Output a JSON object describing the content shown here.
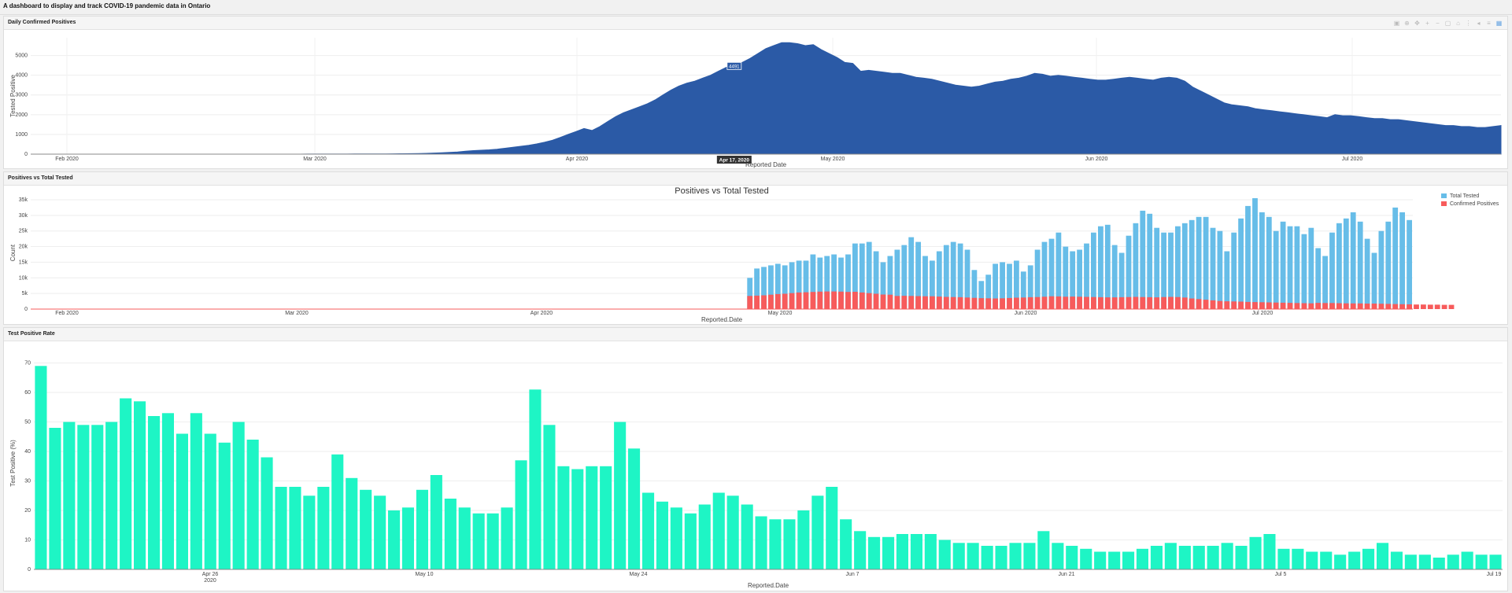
{
  "app": {
    "title": "A dashboard to display and track COVID-19 pandemic data in Ontario"
  },
  "panels": [
    {
      "title": "Daily Confirmed Positives"
    },
    {
      "title": "Positives vs Total Tested"
    },
    {
      "title": "Test Positive Rate"
    }
  ],
  "modebar": [
    "camera-icon",
    "zoom-icon",
    "pan-icon",
    "zoom-in-icon",
    "zoom-out-icon",
    "autoscale-icon",
    "reset-icon",
    "spike-icon",
    "hover-closest-icon",
    "hover-compare-icon",
    "plotly-logo-icon"
  ],
  "chart_data": [
    {
      "type": "area",
      "title": "",
      "xlabel": "Reported Date",
      "ylabel": "Tested Positive",
      "x_ticks": [
        "Feb 2020",
        "Mar 2020",
        "Apr 2020",
        "May 2020",
        "Jun 2020",
        "Jul 2020"
      ],
      "y_ticks": [
        0,
        1000,
        2000,
        3000,
        4000,
        5000
      ],
      "ylim": [
        0,
        5900
      ],
      "color": "#2b5aa6",
      "hover": {
        "value_label": "4491",
        "date_label": "Apr 17, 2020"
      },
      "x_start": "2020-01-27",
      "x_end": "2020-07-21",
      "values": [
        0,
        0,
        0,
        0,
        0,
        0,
        0,
        0,
        0,
        0,
        0,
        0,
        0,
        0,
        0,
        0,
        0,
        0,
        0,
        0,
        0,
        0,
        0,
        0,
        0,
        0,
        0,
        0,
        0,
        0,
        0,
        0,
        1,
        1,
        1,
        2,
        2,
        3,
        3,
        4,
        5,
        6,
        7,
        8,
        10,
        12,
        15,
        20,
        25,
        30,
        40,
        55,
        70,
        90,
        110,
        150,
        180,
        200,
        220,
        250,
        300,
        350,
        400,
        450,
        520,
        600,
        700,
        850,
        1000,
        1150,
        1300,
        1200,
        1400,
        1650,
        1900,
        2100,
        2250,
        2400,
        2550,
        2750,
        3000,
        3250,
        3450,
        3600,
        3700,
        3850,
        4000,
        4200,
        4400,
        4491,
        4650,
        4850,
        5100,
        5350,
        5500,
        5650,
        5650,
        5600,
        5500,
        5550,
        5300,
        5100,
        4900,
        4650,
        4600,
        4200,
        4250,
        4200,
        4150,
        4100,
        4100,
        4000,
        3900,
        3850,
        3800,
        3700,
        3600,
        3500,
        3450,
        3400,
        3450,
        3550,
        3650,
        3700,
        3800,
        3850,
        3950,
        4100,
        4050,
        3950,
        4000,
        3950,
        3900,
        3850,
        3800,
        3750,
        3750,
        3800,
        3850,
        3900,
        3850,
        3800,
        3750,
        3850,
        3900,
        3850,
        3700,
        3400,
        3200,
        3000,
        2800,
        2600,
        2500,
        2450,
        2400,
        2300,
        2250,
        2200,
        2150,
        2100,
        2050,
        2000,
        1950,
        1900,
        1850,
        2000,
        1950,
        1950,
        1900,
        1850,
        1800,
        1800,
        1750,
        1750,
        1700,
        1650,
        1600,
        1550,
        1500,
        1450,
        1450,
        1400,
        1400,
        1350,
        1350,
        1400,
        1450
      ],
      "series": [
        {
          "values_ref": "values"
        }
      ]
    },
    {
      "type": "bar",
      "title": "Positives vs Total Tested",
      "xlabel": "Reported.Date",
      "ylabel": "Count",
      "x_ticks": [
        "Feb 2020",
        "Mar 2020",
        "Apr 2020",
        "May 2020",
        "Jun 2020",
        "Jul 2020"
      ],
      "y_ticks": [
        "0",
        "5k",
        "10k",
        "15k",
        "20k",
        "25k",
        "30k",
        "35k"
      ],
      "ylim": [
        0,
        36000
      ],
      "legend": "top-right",
      "series": [
        {
          "name": "Total Tested",
          "color": "#67bde8",
          "values": [
            0,
            0,
            0,
            0,
            0,
            0,
            0,
            0,
            0,
            0,
            0,
            0,
            0,
            0,
            0,
            0,
            0,
            0,
            0,
            0,
            0,
            0,
            0,
            0,
            0,
            0,
            0,
            0,
            0,
            0,
            0,
            0,
            0,
            0,
            0,
            0,
            0,
            0,
            0,
            0,
            0,
            0,
            0,
            0,
            0,
            0,
            0,
            0,
            0,
            0,
            0,
            0,
            0,
            0,
            0,
            0,
            0,
            0,
            0,
            0,
            0,
            0,
            0,
            0,
            0,
            0,
            0,
            0,
            0,
            0,
            0,
            0,
            0,
            0,
            0,
            0,
            0,
            0,
            0,
            0,
            0,
            0,
            0,
            0,
            0,
            0,
            0,
            0,
            0,
            0,
            0,
            0,
            0,
            0,
            0,
            0,
            0,
            0,
            0,
            0,
            0,
            0,
            10000,
            13000,
            13500,
            14000,
            14500,
            14000,
            15000,
            15500,
            15500,
            17500,
            16500,
            17000,
            17500,
            16500,
            17500,
            21000,
            21000,
            21500,
            18500,
            15000,
            17000,
            19000,
            20500,
            23000,
            21500,
            17000,
            15500,
            18500,
            20500,
            21500,
            21000,
            19000,
            12500,
            9000,
            11000,
            14500,
            15000,
            14500,
            15500,
            12000,
            14000,
            19000,
            21500,
            22500,
            24500,
            20000,
            18500,
            19000,
            21000,
            24500,
            26500,
            27000,
            20500,
            18000,
            23500,
            27500,
            31500,
            30500,
            26000,
            24500,
            24500,
            26500,
            27500,
            28500,
            29500,
            29500,
            26000,
            25000,
            18500,
            24500,
            29000,
            33000,
            35500,
            31000,
            29500,
            25000,
            28000,
            26500,
            26500,
            24000,
            26000,
            19500,
            17000,
            24500,
            27500,
            29000,
            31000,
            28000,
            22500,
            18000,
            25000,
            28000,
            32500,
            31000,
            28500
          ]
        },
        {
          "name": "Confirmed Positives",
          "color": "#f75b5b",
          "values": [
            0,
            0,
            0,
            0,
            0,
            0,
            0,
            0,
            0,
            0,
            0,
            0,
            0,
            0,
            0,
            0,
            0,
            0,
            0,
            0,
            0,
            0,
            0,
            0,
            0,
            0,
            0,
            0,
            0,
            0,
            0,
            0,
            0,
            0,
            0,
            0,
            0,
            0,
            0,
            0,
            0,
            0,
            0,
            0,
            0,
            0,
            0,
            0,
            0,
            0,
            0,
            0,
            0,
            0,
            0,
            0,
            0,
            0,
            0,
            0,
            0,
            0,
            0,
            0,
            0,
            0,
            0,
            0,
            0,
            0,
            0,
            0,
            0,
            0,
            0,
            0,
            0,
            0,
            0,
            0,
            0,
            0,
            0,
            0,
            0,
            0,
            0,
            0,
            0,
            0,
            0,
            0,
            0,
            0,
            0,
            0,
            0,
            0,
            0,
            0,
            0,
            0,
            4200,
            4300,
            4400,
            4600,
            4800,
            4900,
            5100,
            5300,
            5400,
            5500,
            5600,
            5650,
            5650,
            5600,
            5500,
            5550,
            5300,
            5100,
            4900,
            4650,
            4600,
            4200,
            4250,
            4200,
            4150,
            4100,
            4100,
            4000,
            3900,
            3850,
            3800,
            3700,
            3600,
            3500,
            3450,
            3400,
            3450,
            3550,
            3650,
            3700,
            3800,
            3850,
            3950,
            4100,
            4050,
            3950,
            4000,
            3950,
            3900,
            3850,
            3800,
            3750,
            3750,
            3800,
            3850,
            3900,
            3850,
            3800,
            3750,
            3850,
            3900,
            3850,
            3700,
            3400,
            3200,
            3000,
            2800,
            2600,
            2500,
            2450,
            2400,
            2300,
            2250,
            2200,
            2150,
            2100,
            2050,
            2000,
            1950,
            1900,
            1850,
            2000,
            1950,
            1950,
            1900,
            1850,
            1800,
            1800,
            1750,
            1750,
            1700,
            1650,
            1600,
            1550,
            1500,
            1450,
            1450,
            1400,
            1400,
            1350,
            1350
          ]
        }
      ]
    },
    {
      "type": "bar",
      "title": "",
      "xlabel": "Reported.Date",
      "ylabel": "Test Positive (%)",
      "x_ticks": [
        "Apr 26\n2020",
        "May 10",
        "May 24",
        "Jun 7",
        "Jun 21",
        "Jul 5",
        "Jul 19"
      ],
      "y_ticks": [
        0,
        10,
        20,
        30,
        40,
        50,
        60,
        70
      ],
      "ylim": [
        0,
        72
      ],
      "color": "#1ef5c5",
      "values": [
        69,
        48,
        50,
        49,
        49,
        50,
        58,
        57,
        52,
        53,
        46,
        53,
        46,
        43,
        50,
        44,
        38,
        28,
        28,
        25,
        28,
        39,
        31,
        27,
        25,
        20,
        21,
        27,
        32,
        24,
        21,
        19,
        19,
        21,
        37,
        61,
        49,
        35,
        34,
        35,
        35,
        50,
        41,
        26,
        23,
        21,
        19,
        22,
        26,
        25,
        22,
        18,
        17,
        17,
        20,
        25,
        28,
        17,
        13,
        11,
        11,
        12,
        12,
        12,
        10,
        9,
        9,
        8,
        8,
        9,
        9,
        13,
        9,
        8,
        7,
        6,
        6,
        6,
        7,
        8,
        9,
        8,
        8,
        8,
        9,
        8,
        11,
        12,
        7,
        7,
        6,
        6,
        5,
        6,
        7,
        9,
        6,
        5,
        5,
        4,
        5,
        6,
        5,
        5
      ]
    }
  ]
}
